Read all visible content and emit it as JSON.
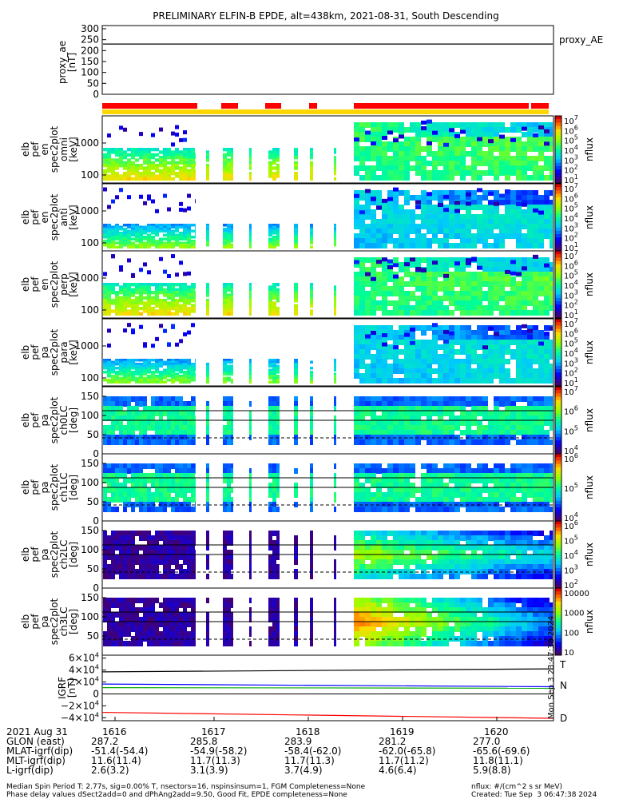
{
  "title": "PRELIMINARY ELFIN-B EPDE, alt=438km, 2021-08-31, South Descending",
  "colors": {
    "red_bar": "#ff0000",
    "gold_bar": "#ffd700",
    "t_label": "#000000",
    "n_label": "#0000ff",
    "d_label": "#ff0000"
  },
  "chart_data": [
    {
      "type": "line",
      "ylabel_lines": [
        "proxy_ae",
        "[nT]"
      ],
      "yticks": [
        "300",
        "250",
        "200",
        "150",
        "100",
        "50",
        "0"
      ],
      "ylim": [
        0,
        300
      ],
      "legend": [
        "proxy_AE"
      ],
      "series": [
        {
          "name": "proxy_AE",
          "values": [
            230,
            230
          ]
        }
      ]
    },
    {
      "type": "heatmap",
      "variable": "pef_en_spec2plot_omni",
      "ylabel_lines": [
        "elb",
        "pef",
        "en",
        "spec2plot",
        "omni",
        "[keV]"
      ],
      "yticks": [
        "1000",
        "100"
      ],
      "colorbar_title": "nflux",
      "colorbar_ticks": [
        "10^7",
        "10^6",
        "10^5",
        "10^4",
        "10^3",
        "10^2",
        "10^1"
      ]
    },
    {
      "type": "heatmap",
      "variable": "pef_en_spec2plot_anti",
      "ylabel_lines": [
        "elb",
        "pef",
        "en",
        "spec2plot",
        "anti",
        "[keV]"
      ],
      "yticks": [
        "1000",
        "100"
      ],
      "colorbar_title": "nflux",
      "colorbar_ticks": [
        "10^7",
        "10^6",
        "10^5",
        "10^4",
        "10^3",
        "10^2",
        "10^1"
      ]
    },
    {
      "type": "heatmap",
      "variable": "pef_en_spec2plot_perp",
      "ylabel_lines": [
        "elb",
        "pef",
        "en",
        "spec2plot",
        "perp",
        "[keV]"
      ],
      "yticks": [
        "1000",
        "100"
      ],
      "colorbar_title": "nflux",
      "colorbar_ticks": [
        "10^7",
        "10^6",
        "10^5",
        "10^4",
        "10^3",
        "10^2",
        "10^1"
      ]
    },
    {
      "type": "heatmap",
      "variable": "pef_pa_spec2plot_para",
      "ylabel_lines": [
        "elb",
        "pef",
        "pa",
        "spec2plot",
        "para",
        "[keV]"
      ],
      "yticks": [
        "1000",
        "100"
      ],
      "colorbar_title": "nflux",
      "colorbar_ticks": [
        "10^7",
        "10^6",
        "10^5",
        "10^4",
        "10^3",
        "10^2",
        "10^1"
      ]
    },
    {
      "type": "heatmap",
      "variable": "pef_pa_spec2plot_ch0LC",
      "ylabel_lines": [
        "elb",
        "pef",
        "pa",
        "spec2plot",
        "ch0LC",
        "[deg]"
      ],
      "yticks": [
        "150",
        "100",
        "50",
        "0"
      ],
      "colorbar_title": "nflux",
      "colorbar_ticks": [
        "10^7",
        "10^6",
        "10^5",
        "10^4"
      ]
    },
    {
      "type": "heatmap",
      "variable": "pef_pa_spec2plot_ch1LC",
      "ylabel_lines": [
        "elb",
        "pef",
        "pa",
        "spec2plot",
        "ch1LC",
        "[deg]"
      ],
      "yticks": [
        "150",
        "100",
        "50",
        "0"
      ],
      "colorbar_title": "nflux",
      "colorbar_ticks": [
        "10^6",
        "10^5",
        "10^4"
      ]
    },
    {
      "type": "heatmap",
      "variable": "pef_pa_spec2plot_ch2LC",
      "ylabel_lines": [
        "elb",
        "pef",
        "pa",
        "spec2plot",
        "ch2LC",
        "[deg]"
      ],
      "yticks": [
        "150",
        "100",
        "50",
        "0"
      ],
      "colorbar_title": "nflux",
      "colorbar_ticks": [
        "10^6",
        "10^5",
        "10^4",
        "10^3",
        "10^2"
      ]
    },
    {
      "type": "heatmap",
      "variable": "pef_pa_spec2plot_ch3LC",
      "ylabel_lines": [
        "elb",
        "pef",
        "pa",
        "spec2plot",
        "ch3LC",
        "[deg]"
      ],
      "yticks": [
        "150",
        "100",
        "50"
      ],
      "colorbar_title": "nflux",
      "colorbar_ticks": [
        "10000",
        "1000",
        "100",
        "10"
      ]
    },
    {
      "type": "line",
      "ylabel_lines": [
        "IGRF",
        "[nT]"
      ],
      "yticks": [
        "6×10^4",
        "4×10^4",
        "2×10^4",
        "0",
        "−2×10^4",
        "−4×10^4"
      ],
      "ylim": [
        -45000,
        65000
      ],
      "series": [
        {
          "name": "T",
          "values": [
            37000,
            42000
          ],
          "color": "#000000"
        },
        {
          "name": "N",
          "values": [
            16500,
            12000
          ],
          "color": "#0000ff"
        },
        {
          "name": "",
          "values": [
            10500,
            9500
          ],
          "color": "#00aa00"
        },
        {
          "name": "D",
          "values": [
            -31000,
            -41000
          ],
          "color": "#ff0000"
        }
      ],
      "side_labels": [
        "T",
        "N",
        "D"
      ],
      "timestamp": "Mon Sep  3 23:47:38 2024"
    }
  ],
  "footer": {
    "date": "2021 Aug 31",
    "time_ticks": [
      "1616",
      "1617",
      "1618",
      "1619",
      "1620"
    ],
    "rows": [
      {
        "label": "GLON (east)",
        "values": [
          "287.2",
          "285.8",
          "283.9",
          "281.2",
          "277.0"
        ]
      },
      {
        "label": "MLAT-igrf(dip)",
        "values": [
          "-51.4(-54.4)",
          "-54.9(-58.2)",
          "-58.4(-62.0)",
          "-62.0(-65.8)",
          "-65.6(-69.6)"
        ]
      },
      {
        "label": "MLT-igrf(dip)",
        "values": [
          "11.6(11.4)",
          "11.7(11.3)",
          "11.7(11.3)",
          "11.7(11.2)",
          "11.8(11.1)"
        ]
      },
      {
        "label": "L-igrf(dip)",
        "values": [
          "2.6(3.2)",
          "3.1(3.9)",
          "3.7(4.9)",
          "4.6(6.4)",
          "5.9(8.8)"
        ]
      }
    ],
    "note_line1": "Median Spin Period T: 2.77s, sig=0.00% T, nsectors=16, nspinsinsum=1, FGM Completeness=None",
    "note_line2": "Phase delay values dSect2add=0 and dPhAng2add=9.50, Good Fit, EPDE completeness=None",
    "units_note": "nflux: #/(cm^2 s sr MeV)",
    "created_note": "Created: Tue Sep  3 06:47:38 2024"
  }
}
